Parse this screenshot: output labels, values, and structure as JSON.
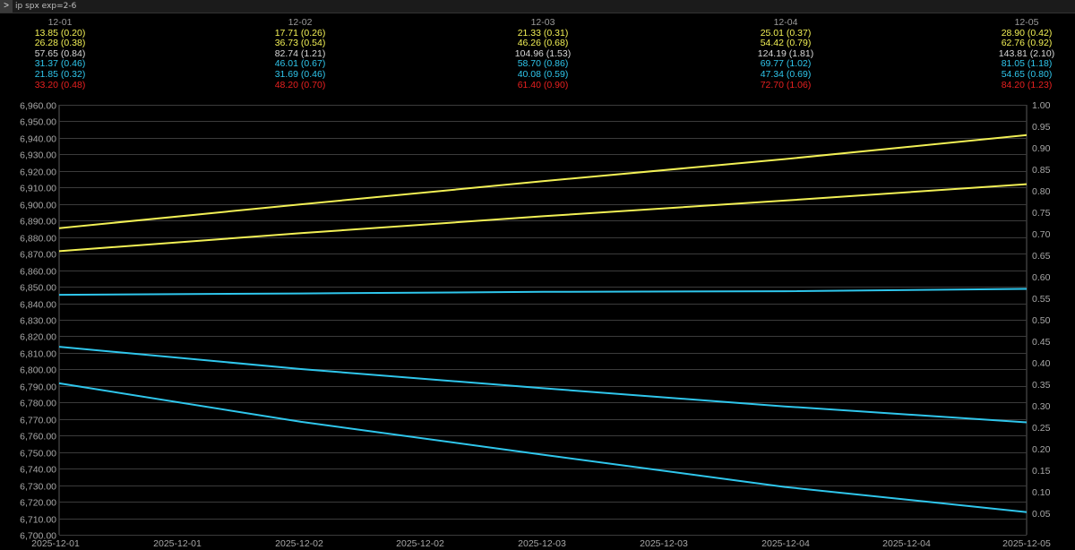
{
  "window": {
    "title": "ip spx exp=2-6",
    "button_label": ">"
  },
  "header": {
    "columns": [
      {
        "date": "12-01",
        "rows": [
          {
            "text": "13.85 (0.20)",
            "color": "#f2f055"
          },
          {
            "text": "26.28 (0.38)",
            "color": "#f2f055"
          },
          {
            "text": "57.65 (0.84)",
            "color": "#d8d8d8"
          },
          {
            "text": "31.37 (0.46)",
            "color": "#2fc6ec"
          },
          {
            "text": "21.85 (0.32)",
            "color": "#2fc6ec"
          },
          {
            "text": "33.20 (0.48)",
            "color": "#e82020"
          }
        ]
      },
      {
        "date": "12-02",
        "rows": [
          {
            "text": "17.71 (0.26)",
            "color": "#f2f055"
          },
          {
            "text": "36.73 (0.54)",
            "color": "#f2f055"
          },
          {
            "text": "82.74 (1.21)",
            "color": "#d8d8d8"
          },
          {
            "text": "46.01 (0.67)",
            "color": "#2fc6ec"
          },
          {
            "text": "31.69 (0.46)",
            "color": "#2fc6ec"
          },
          {
            "text": "48.20 (0.70)",
            "color": "#e82020"
          }
        ]
      },
      {
        "date": "12-03",
        "rows": [
          {
            "text": "21.33 (0.31)",
            "color": "#f2f055"
          },
          {
            "text": "46.26 (0.68)",
            "color": "#f2f055"
          },
          {
            "text": "104.96 (1.53)",
            "color": "#d8d8d8"
          },
          {
            "text": "58.70 (0.86)",
            "color": "#2fc6ec"
          },
          {
            "text": "40.08 (0.59)",
            "color": "#2fc6ec"
          },
          {
            "text": "61.40 (0.90)",
            "color": "#e82020"
          }
        ]
      },
      {
        "date": "12-04",
        "rows": [
          {
            "text": "25.01 (0.37)",
            "color": "#f2f055"
          },
          {
            "text": "54.42 (0.79)",
            "color": "#f2f055"
          },
          {
            "text": "124.19 (1.81)",
            "color": "#d8d8d8"
          },
          {
            "text": "69.77 (1.02)",
            "color": "#2fc6ec"
          },
          {
            "text": "47.34 (0.69)",
            "color": "#2fc6ec"
          },
          {
            "text": "72.70 (1.06)",
            "color": "#e82020"
          }
        ]
      },
      {
        "date": "12-05",
        "rows": [
          {
            "text": "28.90 (0.42)",
            "color": "#f2f055"
          },
          {
            "text": "62.76 (0.92)",
            "color": "#f2f055"
          },
          {
            "text": "143.81 (2.10)",
            "color": "#d8d8d8"
          },
          {
            "text": "81.05 (1.18)",
            "color": "#2fc6ec"
          },
          {
            "text": "54.65 (0.80)",
            "color": "#2fc6ec"
          },
          {
            "text": "84.20 (1.23)",
            "color": "#e82020"
          }
        ]
      }
    ]
  },
  "chart_data": {
    "type": "line",
    "x_tick_labels": [
      "2025-12-01",
      "2025-12-01",
      "2025-12-02",
      "2025-12-02",
      "2025-12-03",
      "2025-12-03",
      "2025-12-04",
      "2025-12-04",
      "2025-12-05"
    ],
    "ylim_left": [
      6700,
      6960
    ],
    "y_ticks_left": [
      "6,700.00",
      "6,710.00",
      "6,720.00",
      "6,730.00",
      "6,740.00",
      "6,750.00",
      "6,760.00",
      "6,770.00",
      "6,780.00",
      "6,790.00",
      "6,800.00",
      "6,810.00",
      "6,820.00",
      "6,830.00",
      "6,840.00",
      "6,850.00",
      "6,860.00",
      "6,870.00",
      "6,880.00",
      "6,890.00",
      "6,900.00",
      "6,910.00",
      "6,920.00",
      "6,930.00",
      "6,940.00",
      "6,950.00",
      "6,960.00"
    ],
    "ylim_right": [
      0.0,
      1.0
    ],
    "y_ticks_right": [
      "0.05",
      "0.10",
      "0.15",
      "0.20",
      "0.25",
      "0.30",
      "0.35",
      "0.40",
      "0.45",
      "0.50",
      "0.55",
      "0.60",
      "0.65",
      "0.70",
      "0.75",
      "0.80",
      "0.85",
      "0.90",
      "0.95",
      "1.00"
    ],
    "x_range": [
      0,
      4
    ],
    "grid": true,
    "series": [
      {
        "color": "#f2f055",
        "x": [
          0,
          1,
          2,
          3,
          4
        ],
        "y": [
          6885.4,
          6899.8,
          6913.8,
          6927.2,
          6941.7
        ]
      },
      {
        "color": "#f2f055",
        "x": [
          0,
          1,
          2,
          3,
          4
        ],
        "y": [
          6871.5,
          6882.4,
          6892.6,
          6902.1,
          6912.0
        ]
      },
      {
        "color": "#2fc6ec",
        "x": [
          0,
          1,
          2,
          3,
          4
        ],
        "y": [
          6845.1,
          6845.9,
          6846.9,
          6847.3,
          6848.7
        ]
      },
      {
        "color": "#2fc6ec",
        "x": [
          0,
          1,
          2,
          3,
          4
        ],
        "y": [
          6813.7,
          6800.2,
          6788.6,
          6777.6,
          6768.0
        ]
      },
      {
        "color": "#2fc6ec",
        "x": [
          0,
          1,
          2,
          3,
          4
        ],
        "y": [
          6791.6,
          6768.3,
          6748.4,
          6728.9,
          6713.7
        ]
      }
    ]
  }
}
